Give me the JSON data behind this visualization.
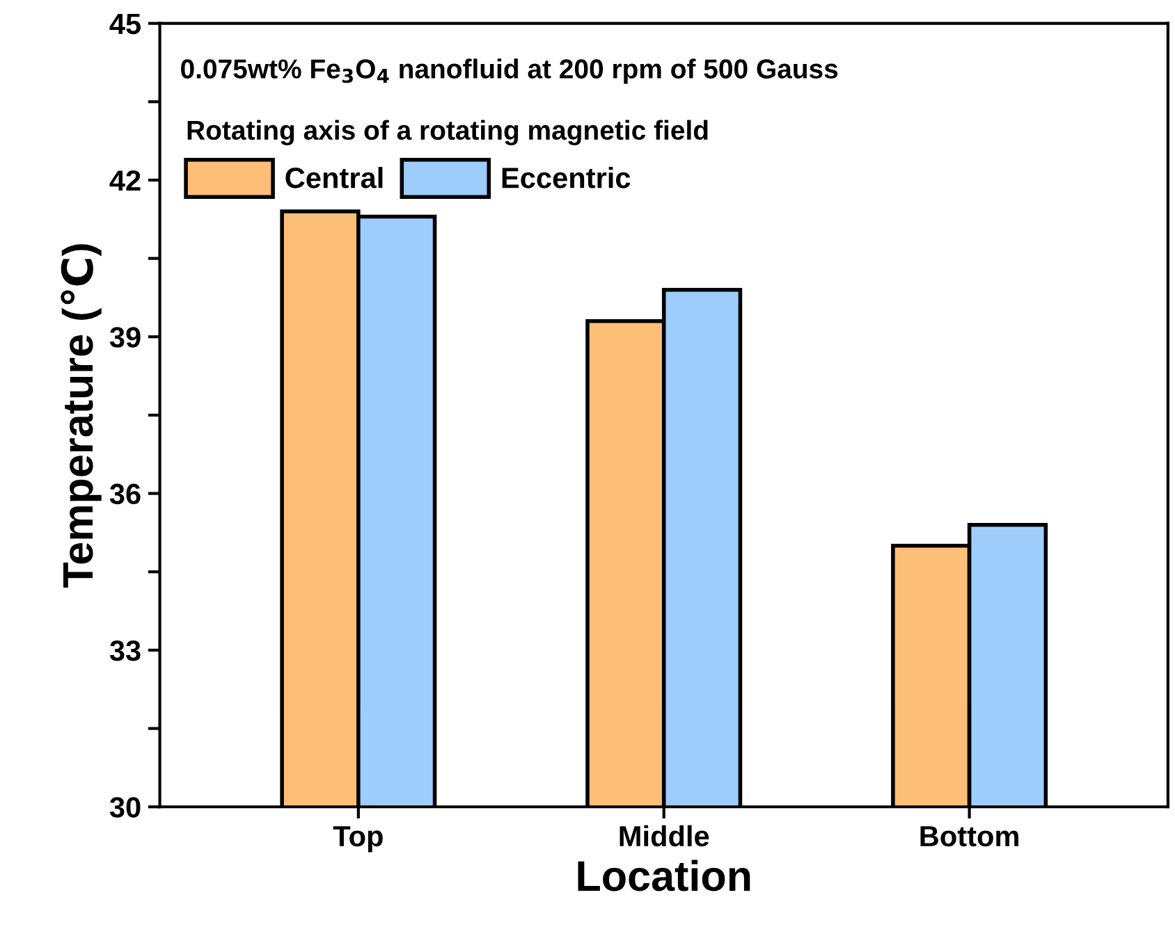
{
  "chart_data": {
    "type": "bar",
    "title": "0.075wt% Fe$_{3}$O$_{4}$ nanofluid at 200 rpm of 500 Gauss",
    "legend_title": "Rotating axis of a rotating magnetic field",
    "xlabel": "Location",
    "ylabel": "Temperature (℃)",
    "categories": [
      "Top",
      "Middle",
      "Bottom"
    ],
    "series": [
      {
        "name": "Central",
        "color": "#fdbf78",
        "values": [
          41.4,
          39.3,
          35.0
        ]
      },
      {
        "name": "Eccentric",
        "color": "#9ecdfc",
        "values": [
          41.3,
          39.9,
          35.4
        ]
      }
    ],
    "ylim": [
      30,
      45
    ],
    "yticks": [
      30,
      {
        "value": 31.5,
        "label": null
      },
      33,
      {
        "value": 34.5,
        "label": null
      },
      36,
      {
        "value": 37.5,
        "label": null
      },
      39,
      {
        "value": 40.5,
        "label": null
      },
      42,
      {
        "value": 43.5,
        "label": null
      },
      45
    ],
    "grid": false,
    "legend": "top left"
  }
}
